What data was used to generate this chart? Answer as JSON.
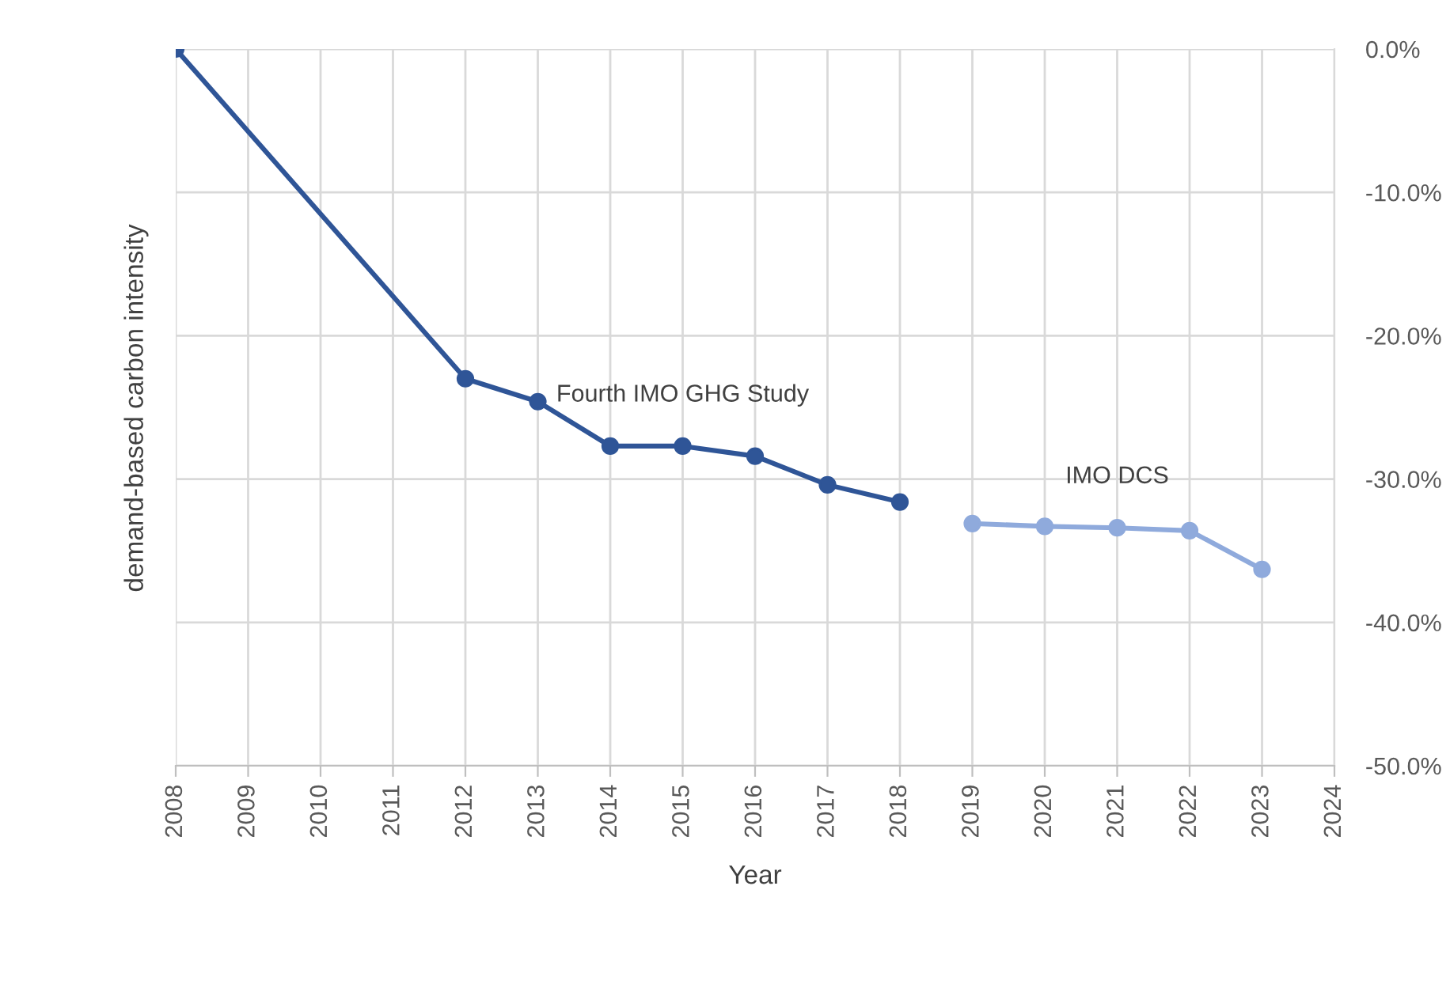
{
  "chart_data": {
    "type": "line",
    "xlabel": "Year",
    "ylabel": "demand-based carbon intensity",
    "series": [
      {
        "name": "Fourth IMO GHG Study",
        "color": "#2f5597",
        "x": [
          2008,
          2012,
          2013,
          2014,
          2015,
          2016,
          2017,
          2018
        ],
        "values": [
          0.0,
          -23.0,
          -24.6,
          -27.7,
          -27.7,
          -28.4,
          -30.4,
          -31.6
        ]
      },
      {
        "name": "IMO DCS",
        "color": "#8faadc",
        "x": [
          2019,
          2020,
          2021,
          2022,
          2023
        ],
        "values": [
          -33.1,
          -33.3,
          -33.4,
          -33.6,
          -36.3
        ]
      }
    ],
    "xlim": [
      2008,
      2024
    ],
    "xticks": [
      2008,
      2009,
      2010,
      2011,
      2012,
      2013,
      2014,
      2015,
      2016,
      2017,
      2018,
      2019,
      2020,
      2021,
      2022,
      2023,
      2024
    ],
    "ylim": [
      -50,
      0
    ],
    "yticks": [
      {
        "value": -50,
        "label": "-50.0%"
      },
      {
        "value": -40,
        "label": "-40.0%"
      },
      {
        "value": -30,
        "label": "-30.0%"
      },
      {
        "value": -20,
        "label": "-20.0%"
      },
      {
        "value": -10,
        "label": "-10.0%"
      },
      {
        "value": 0,
        "label": "0.0%"
      }
    ],
    "grid": true,
    "marker": "circle",
    "line_style": "solid",
    "legend": false
  }
}
